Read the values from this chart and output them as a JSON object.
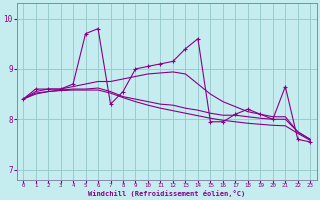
{
  "xlabel": "Windchill (Refroidissement éolien,°C)",
  "background_color": "#c5edf0",
  "line_color": "#880088",
  "grid_color": "#99cccc",
  "x_values": [
    0,
    1,
    2,
    3,
    4,
    5,
    6,
    7,
    8,
    9,
    10,
    11,
    12,
    13,
    14,
    15,
    16,
    17,
    18,
    19,
    20,
    21,
    22,
    23
  ],
  "line1": [
    8.4,
    8.6,
    8.6,
    8.6,
    8.7,
    9.7,
    9.8,
    8.3,
    8.55,
    9.0,
    9.05,
    9.1,
    9.15,
    9.4,
    9.6,
    7.95,
    7.95,
    8.1,
    8.2,
    8.1,
    8.0,
    8.65,
    7.6,
    7.55
  ],
  "line2": [
    8.4,
    8.55,
    8.6,
    8.6,
    8.65,
    8.7,
    8.75,
    8.75,
    8.8,
    8.85,
    8.9,
    8.92,
    8.94,
    8.9,
    8.7,
    8.5,
    8.35,
    8.25,
    8.15,
    8.1,
    8.05,
    8.05,
    7.75,
    7.6
  ],
  "line3": [
    8.4,
    8.5,
    8.55,
    8.58,
    8.6,
    8.6,
    8.62,
    8.55,
    8.45,
    8.4,
    8.35,
    8.3,
    8.28,
    8.22,
    8.18,
    8.12,
    8.08,
    8.08,
    8.05,
    8.02,
    8.0,
    8.0,
    7.75,
    7.6
  ],
  "line4": [
    8.4,
    8.52,
    8.55,
    8.57,
    8.58,
    8.58,
    8.58,
    8.52,
    8.43,
    8.35,
    8.28,
    8.22,
    8.17,
    8.12,
    8.07,
    8.02,
    7.98,
    7.95,
    7.92,
    7.9,
    7.88,
    7.87,
    7.72,
    7.58
  ],
  "ylim": [
    6.8,
    10.3
  ],
  "yticks": [
    7,
    8,
    9,
    10
  ],
  "xlim": [
    -0.5,
    23.5
  ],
  "xticks": [
    0,
    1,
    2,
    3,
    4,
    5,
    6,
    7,
    8,
    9,
    10,
    11,
    12,
    13,
    14,
    15,
    16,
    17,
    18,
    19,
    20,
    21,
    22,
    23
  ]
}
